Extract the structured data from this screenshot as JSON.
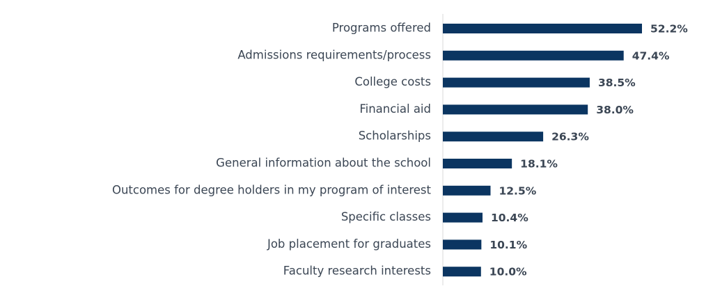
{
  "chart_data": {
    "type": "hbar",
    "categories": [
      "Programs offered",
      "Admissions requirements/process",
      "College costs",
      "Financial aid",
      "Scholarships",
      "General information about the school",
      "Outcomes for degree holders in my program of interest",
      "Specific classes",
      "Job placement for graduates",
      "Faculty research interests"
    ],
    "values": [
      52.2,
      47.4,
      38.5,
      38.0,
      26.3,
      18.1,
      12.5,
      10.4,
      10.1,
      10.0
    ],
    "value_labels": [
      "52.2%",
      "47.4%",
      "38.5%",
      "38.0%",
      "26.3%",
      "18.1%",
      "12.5%",
      "10.4%",
      "10.1%",
      "10.0%"
    ],
    "color": "#0b3561"
  }
}
